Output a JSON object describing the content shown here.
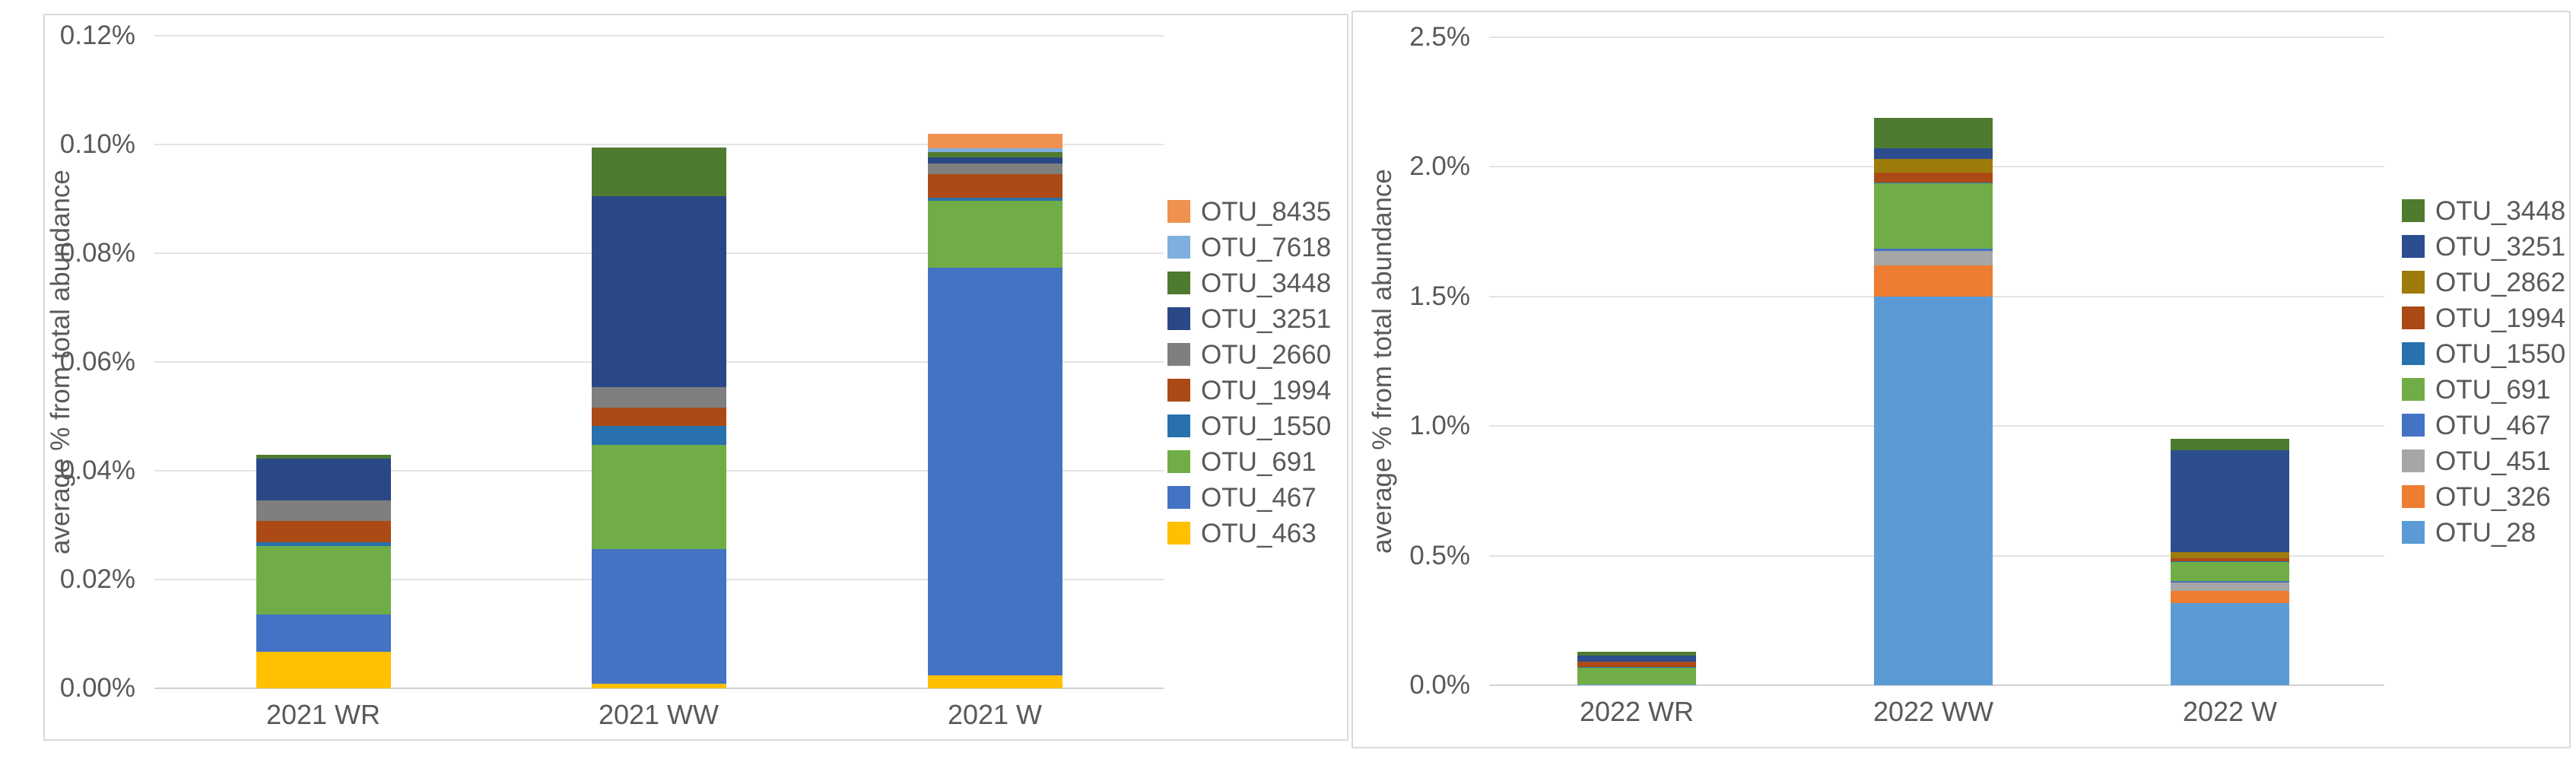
{
  "page": {
    "background_color": "#ffffff",
    "panel_border_color": "#d9d9d9"
  },
  "chart_data": [
    {
      "type": "stacked-bar",
      "stacked": true,
      "title": "",
      "y_axis_title": "average % from total abundance",
      "xlabel": "",
      "ylabel": "average % from total abundance",
      "ylim": [
        0,
        0.12
      ],
      "grid": true,
      "legend_position": "right",
      "y_ticks": [
        {
          "label": "0.12%",
          "value": 0.12
        },
        {
          "label": "0.10%",
          "value": 0.1
        },
        {
          "label": "0.08%",
          "value": 0.08
        },
        {
          "label": "0.06%",
          "value": 0.06
        },
        {
          "label": "0.04%",
          "value": 0.04
        },
        {
          "label": "0.02%",
          "value": 0.02
        },
        {
          "label": "0.00%",
          "value": 0.0
        }
      ],
      "categories": [
        "2021 WR",
        "2021 WW",
        "2021 W"
      ],
      "series": [
        {
          "name": "OTU_8435",
          "color": "#EF9150",
          "values": [
            0,
            0,
            0.0026
          ]
        },
        {
          "name": "OTU_7618",
          "color": "#7FAFDE",
          "values": [
            0,
            0,
            0.0007
          ]
        },
        {
          "name": "OTU_3448",
          "color": "#4E7B2F",
          "values": [
            0.0007,
            0.009,
            0.001
          ]
        },
        {
          "name": "OTU_3251",
          "color": "#2A4885",
          "values": [
            0.0077,
            0.0351,
            0.0011
          ]
        },
        {
          "name": "OTU_2660",
          "color": "#7F7F7F",
          "values": [
            0.0039,
            0.0038,
            0.0019
          ]
        },
        {
          "name": "OTU_1994",
          "color": "#AC4A15",
          "values": [
            0.0038,
            0.0034,
            0.0044
          ]
        },
        {
          "name": "OTU_1550",
          "color": "#2971AC",
          "values": [
            0.0007,
            0.0034,
            0.0005
          ]
        },
        {
          "name": "OTU_691",
          "color": "#70AD47",
          "values": [
            0.0126,
            0.0192,
            0.0124
          ]
        },
        {
          "name": "OTU_467",
          "color": "#4472C4",
          "values": [
            0.0069,
            0.0247,
            0.0749
          ]
        },
        {
          "name": "OTU_463",
          "color": "#FFC000",
          "values": [
            0.0067,
            0.0009,
            0.0024
          ]
        }
      ],
      "bar_totals": [
        0.043,
        0.0995,
        0.1019
      ]
    },
    {
      "type": "stacked-bar",
      "stacked": true,
      "title": "",
      "y_axis_title": "average % from total abundance",
      "xlabel": "",
      "ylabel": "average % from total abundance",
      "ylim": [
        0,
        2.5
      ],
      "grid": true,
      "legend_position": "right",
      "y_ticks": [
        {
          "label": "2.5%",
          "value": 2.5
        },
        {
          "label": "2.0%",
          "value": 2.0
        },
        {
          "label": "1.5%",
          "value": 1.5
        },
        {
          "label": "1.0%",
          "value": 1.0
        },
        {
          "label": "0.5%",
          "value": 0.5
        },
        {
          "label": "0.0%",
          "value": 0.0
        }
      ],
      "categories": [
        "2022 WR",
        "2022 WW",
        "2022 W"
      ],
      "series": [
        {
          "name": "OTU_3448",
          "color": "#4E7B2F",
          "values": [
            0.015,
            0.117,
            0.044
          ]
        },
        {
          "name": "OTU_3251",
          "color": "#2C4D8E",
          "values": [
            0.023,
            0.041,
            0.394
          ]
        },
        {
          "name": "OTU_2862",
          "color": "#9E7C0C",
          "values": [
            0,
            0.053,
            0.023
          ]
        },
        {
          "name": "OTU_1994",
          "color": "#AC4A15",
          "values": [
            0.021,
            0.038,
            0.012
          ]
        },
        {
          "name": "OTU_1550",
          "color": "#2971AC",
          "values": [
            0.002,
            0.004,
            0.003
          ]
        },
        {
          "name": "OTU_691",
          "color": "#70AD47",
          "values": [
            0.064,
            0.251,
            0.075
          ]
        },
        {
          "name": "OTU_467",
          "color": "#4472C4",
          "values": [
            0,
            0.009,
            0.004
          ]
        },
        {
          "name": "OTU_451",
          "color": "#A6A6A6",
          "values": [
            0,
            0.056,
            0.032
          ]
        },
        {
          "name": "OTU_326",
          "color": "#ED7D31",
          "values": [
            0,
            0.12,
            0.047
          ]
        },
        {
          "name": "OTU_28",
          "color": "#5B9BD5",
          "values": [
            0.003,
            1.5,
            0.318
          ]
        }
      ],
      "bar_totals": [
        0.128,
        2.189,
        0.952
      ]
    }
  ]
}
